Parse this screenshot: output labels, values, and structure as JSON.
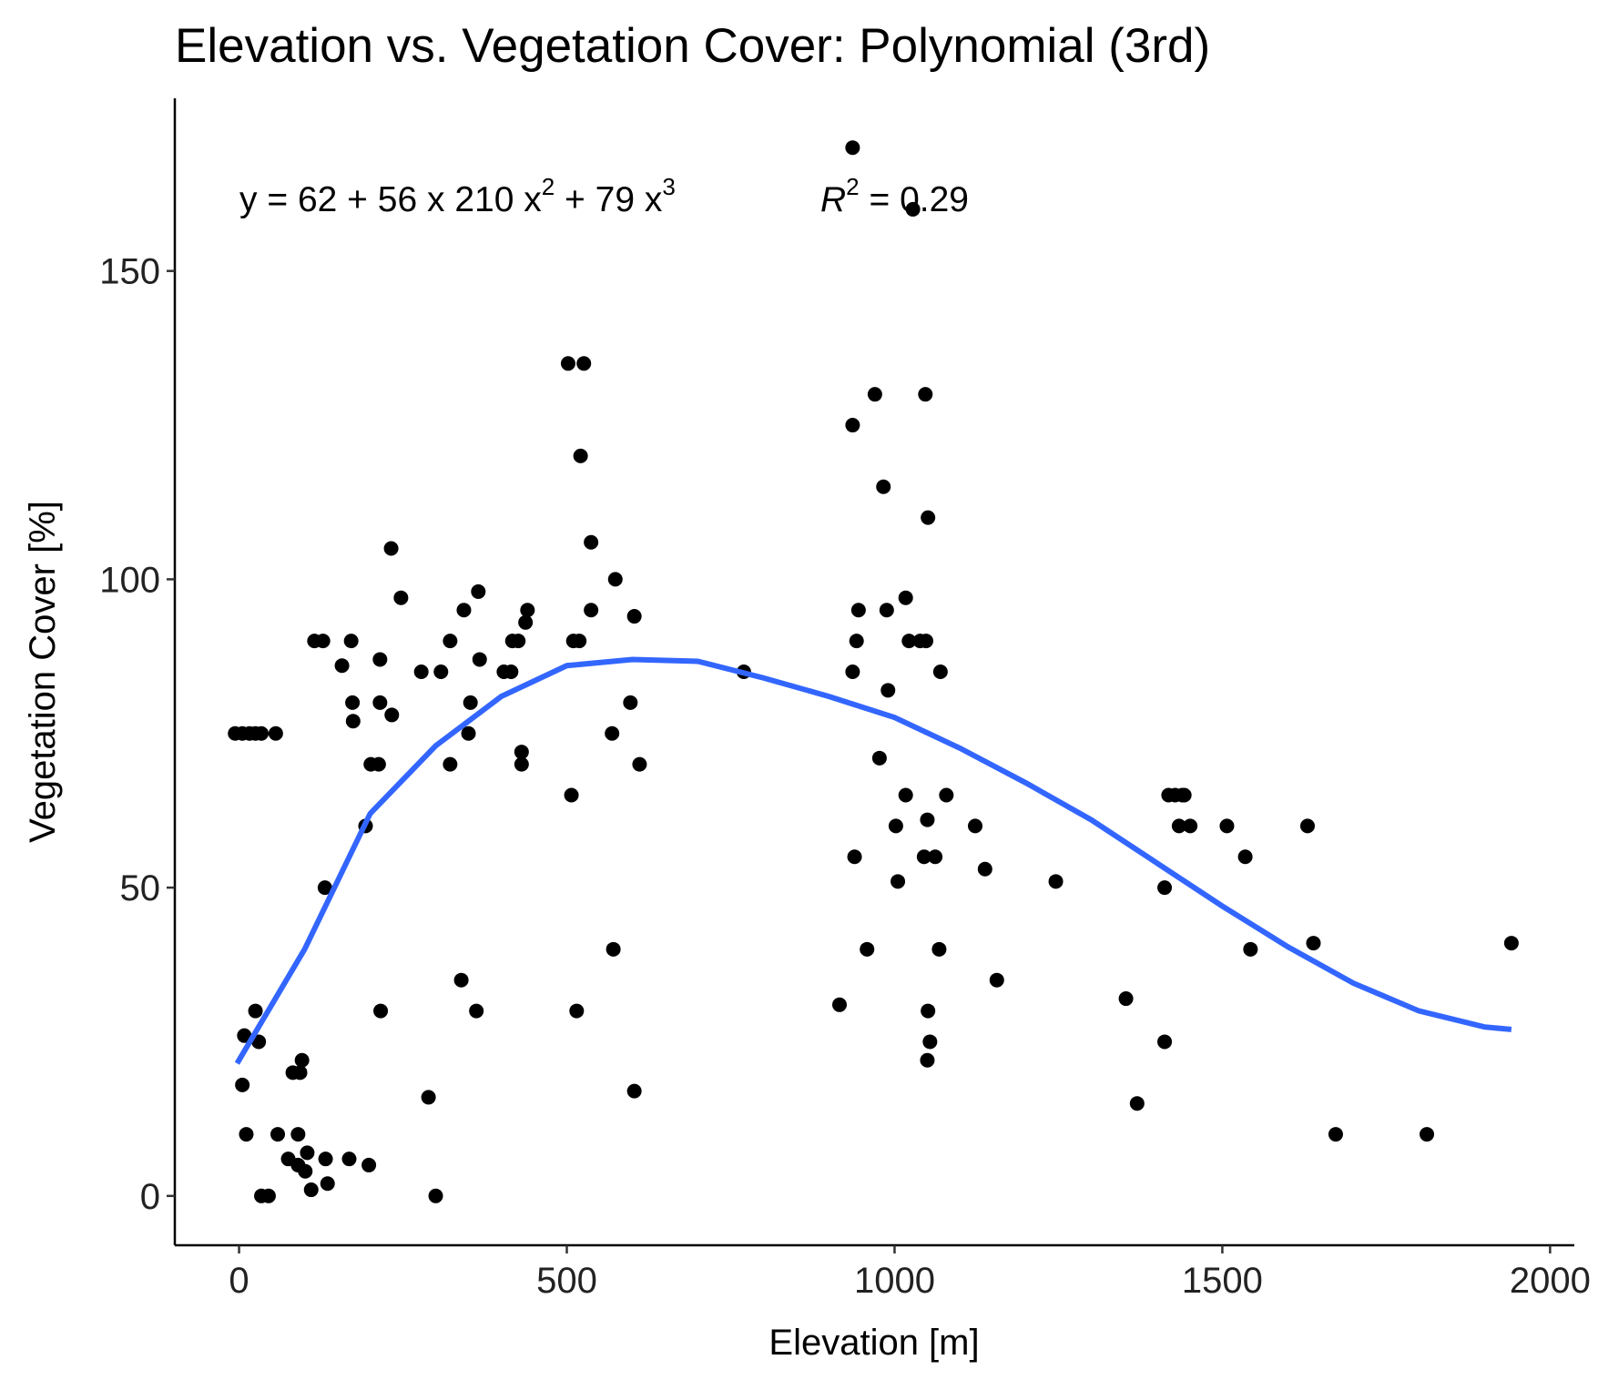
{
  "chart_data": {
    "type": "scatter",
    "title": "Elevation vs. Vegetation Cover: Polynomial (3rd)",
    "x_label": "Elevation [m]",
    "y_label": "Vegetation Cover [%]",
    "equation": [
      "y = 62 + 56 x   210 x",
      "2",
      " + 79 x",
      "3"
    ],
    "r_squared": [
      "R",
      "2",
      " = 0.29"
    ],
    "xlim": [
      -98,
      2037
    ],
    "ylim": [
      -8,
      178
    ],
    "xticks": [
      0,
      500,
      1000,
      1500,
      2000
    ],
    "yticks": [
      0,
      50,
      100,
      150
    ],
    "grid": false,
    "color": "#000000",
    "x": [
      -6,
      5,
      16,
      25,
      34,
      56,
      5,
      8,
      11,
      25,
      30,
      34,
      45,
      59,
      75,
      82,
      93,
      90,
      96,
      90,
      104,
      101,
      110,
      115,
      128,
      131,
      132,
      135,
      157,
      171,
      173,
      174,
      168,
      193,
      198,
      201,
      213,
      215,
      215,
      216,
      232,
      233,
      247,
      278,
      289,
      300,
      308,
      322,
      322,
      339,
      343,
      350,
      353,
      362,
      365,
      367,
      404,
      415,
      417,
      426,
      431,
      431,
      437,
      440,
      502,
      507,
      510,
      519,
      515,
      521,
      526,
      537,
      537,
      569,
      571,
      574,
      597,
      603,
      603,
      611,
      770,
      916,
      936,
      936,
      936,
      939,
      942,
      945,
      958,
      970,
      977,
      983,
      988,
      990,
      1002,
      1005,
      1017,
      1017,
      1022,
      1028,
      1039,
      1047,
      1048,
      1045,
      1050,
      1051,
      1051,
      1050,
      1054,
      1062,
      1068,
      1070,
      1079,
      1123,
      1138,
      1156,
      1246,
      1353,
      1370,
      1412,
      1412,
      1418,
      1428,
      1439,
      1434,
      1442,
      1451,
      1507,
      1535,
      1543,
      1630,
      1639,
      1673,
      1812,
      1941
    ],
    "values": [
      75,
      75,
      75,
      75,
      75,
      75,
      18,
      26,
      10,
      30,
      25,
      0,
      0,
      10,
      6,
      20,
      20,
      10,
      22,
      5,
      7,
      4,
      1,
      90,
      90,
      50,
      6,
      2,
      86,
      90,
      80,
      77,
      6,
      60,
      5,
      70,
      70,
      87,
      80,
      30,
      105,
      78,
      97,
      85,
      16,
      0,
      85,
      90,
      70,
      35,
      95,
      75,
      80,
      30,
      98,
      87,
      85,
      85,
      90,
      90,
      72,
      70,
      93,
      95,
      135,
      65,
      90,
      90,
      30,
      120,
      135,
      106,
      95,
      75,
      40,
      100,
      80,
      94,
      17,
      70,
      85,
      31,
      170,
      125,
      85,
      55,
      90,
      95,
      40,
      130,
      71,
      115,
      95,
      82,
      60,
      51,
      65,
      97,
      90,
      160,
      90,
      130,
      90,
      55,
      61,
      110,
      30,
      22,
      25,
      55,
      40,
      85,
      65,
      60,
      53,
      35,
      51,
      32,
      15,
      50,
      25,
      65,
      65,
      65,
      60,
      65,
      60,
      60,
      55,
      40,
      60,
      41,
      10,
      10,
      41
    ],
    "fit": {
      "color": "#3366FF",
      "x": [
        -3,
        100,
        200,
        300,
        400,
        500,
        600,
        700,
        800,
        900,
        1000,
        1100,
        1200,
        1300,
        1400,
        1500,
        1600,
        1700,
        1800,
        1900,
        1941
      ],
      "y": [
        21.5,
        40,
        62,
        73,
        81,
        86,
        87,
        86.7,
        84,
        81,
        77.6,
        72.6,
        67,
        61,
        54,
        47,
        40.4,
        34.5,
        30,
        27.4,
        27
      ]
    }
  }
}
